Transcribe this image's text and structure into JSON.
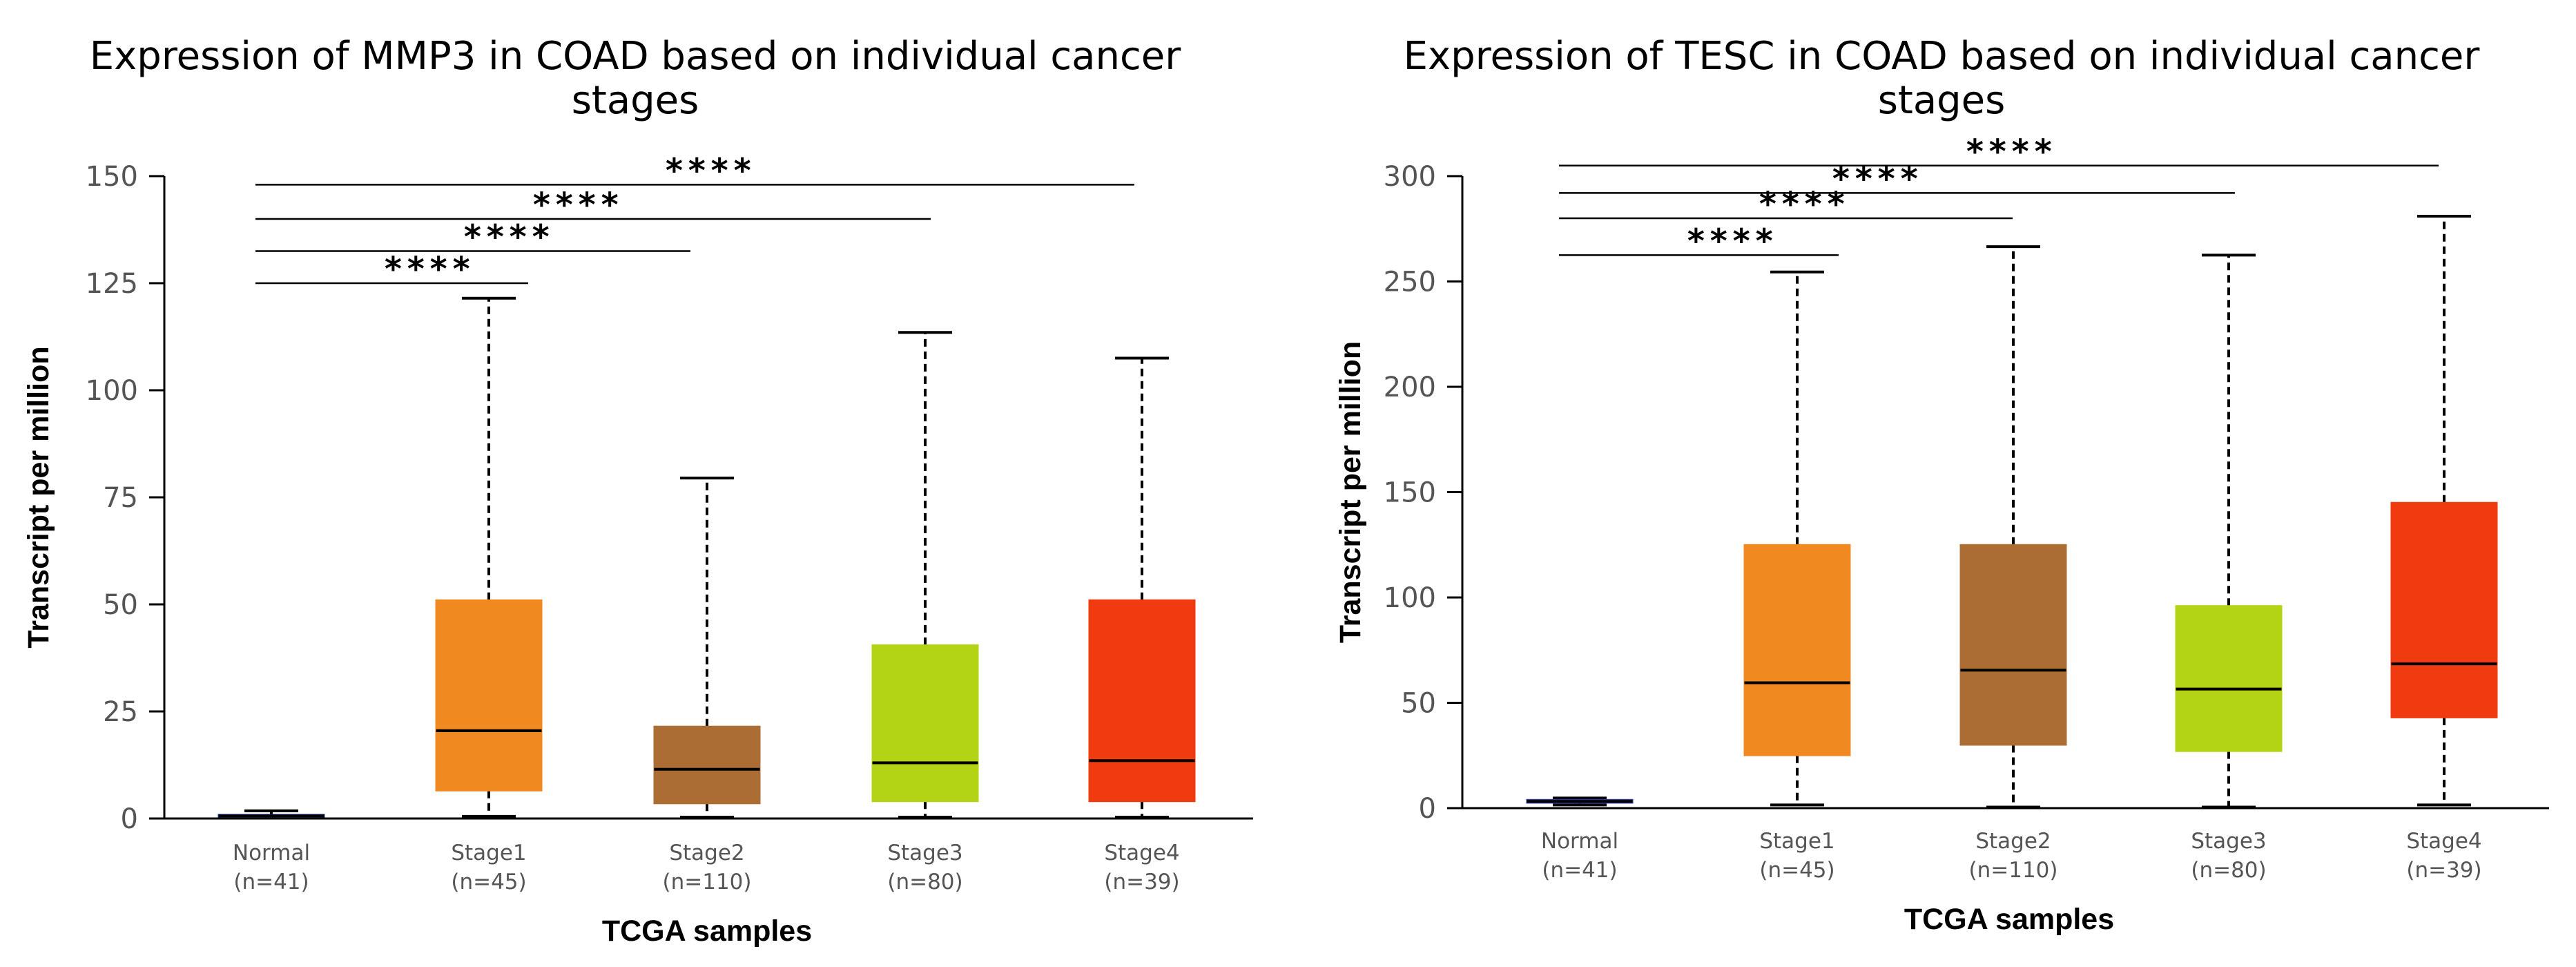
{
  "chart_data": [
    {
      "type": "box",
      "title": "Expression of MMP3 in COAD based on individual cancer stages",
      "title_lines": [
        "Expression of MMP3 in COAD based on individual cancer",
        "stages"
      ],
      "xlabel": "TCGA samples",
      "ylabel": "Transcript per million",
      "ylim": [
        0,
        150
      ],
      "yticks": [
        0,
        25,
        50,
        75,
        100,
        125,
        150
      ],
      "categories": [
        "Normal",
        "Stage1",
        "Stage2",
        "Stage3",
        "Stage4"
      ],
      "sample_counts": [
        "(n=41)",
        "(n=45)",
        "(n=110)",
        "(n=80)",
        "(n=39)"
      ],
      "colors": [
        "#2b3a9e",
        "#f0891f",
        "#ac6d35",
        "#b2d414",
        "#f03a10"
      ],
      "boxes": [
        {
          "min": 0.2,
          "q1": 0.4,
          "median": 0.6,
          "q3": 0.9,
          "max": 1.8
        },
        {
          "min": 0.5,
          "q1": 6.5,
          "median": 20.5,
          "q3": 51,
          "max": 121.5
        },
        {
          "min": 0.3,
          "q1": 3.5,
          "median": 11.5,
          "q3": 21.5,
          "max": 79.5
        },
        {
          "min": 0.3,
          "q1": 4,
          "median": 13,
          "q3": 40.5,
          "max": 113.5
        },
        {
          "min": 0.3,
          "q1": 4,
          "median": 13.5,
          "q3": 51,
          "max": 107.5
        }
      ],
      "significance": [
        {
          "from": "Normal",
          "to": "Stage1",
          "y": 125,
          "label": "****"
        },
        {
          "from": "Normal",
          "to": "Stage2",
          "y": 132.5,
          "label": "****"
        },
        {
          "from": "Normal",
          "to": "Stage3",
          "y": 140,
          "label": "****"
        },
        {
          "from": "Normal",
          "to": "Stage4",
          "y": 148,
          "label": "****"
        }
      ]
    },
    {
      "type": "box",
      "title": "Expression of TESC in COAD based on individual cancer stages",
      "title_lines": [
        "Expression of TESC in COAD based on individual cancer",
        "stages"
      ],
      "xlabel": "TCGA samples",
      "ylabel": "Transcript per million",
      "ylim": [
        0,
        300
      ],
      "yticks": [
        0,
        50,
        100,
        150,
        200,
        250,
        300
      ],
      "categories": [
        "Normal",
        "Stage1",
        "Stage2",
        "Stage3",
        "Stage4"
      ],
      "sample_counts": [
        "(n=41)",
        "(n=45)",
        "(n=110)",
        "(n=80)",
        "(n=39)"
      ],
      "colors": [
        "#2b3a9e",
        "#f0891f",
        "#ac6d35",
        "#b2d414",
        "#f03a10"
      ],
      "boxes": [
        {
          "min": 1.5,
          "q1": 2.5,
          "median": 3.2,
          "q3": 4,
          "max": 4.8
        },
        {
          "min": 1.5,
          "q1": 25,
          "median": 59.5,
          "q3": 125,
          "max": 254.5
        },
        {
          "min": 0.5,
          "q1": 30,
          "median": 65.5,
          "q3": 125,
          "max": 266.5
        },
        {
          "min": 0.5,
          "q1": 27,
          "median": 56.5,
          "q3": 96,
          "max": 262.5
        },
        {
          "min": 1.5,
          "q1": 43,
          "median": 68.5,
          "q3": 145,
          "max": 281
        }
      ],
      "significance": [
        {
          "from": "Normal",
          "to": "Stage1",
          "y": 262.5,
          "label": "****"
        },
        {
          "from": "Normal",
          "to": "Stage2",
          "y": 280,
          "label": "****"
        },
        {
          "from": "Normal",
          "to": "Stage3",
          "y": 292,
          "label": "****"
        },
        {
          "from": "Normal",
          "to": "Stage4",
          "y": 305,
          "label": "****"
        }
      ]
    }
  ]
}
